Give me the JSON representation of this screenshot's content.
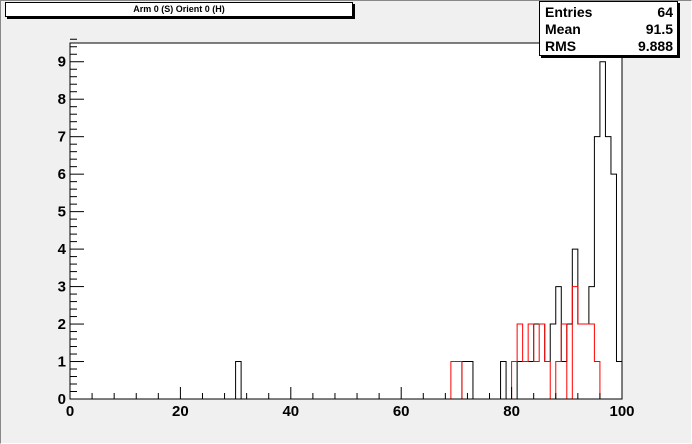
{
  "title": "Arm 0 (S) Orient 0 (H)",
  "stats": [
    {
      "label": "Entries",
      "value": "64"
    },
    {
      "label": "Mean",
      "value": "91.5"
    },
    {
      "label": "RMS",
      "value": "9.888"
    }
  ],
  "colors": {
    "background": "#f0f0f0",
    "plot_bg": "#ffffff",
    "series_black": "#000000",
    "series_red": "#ff0000"
  },
  "chart_data": {
    "type": "histogram",
    "title": "Arm 0 (S) Orient 0 (H)",
    "xlim": [
      0,
      100
    ],
    "ylim": [
      0,
      9.5
    ],
    "bin_width": 1,
    "x_ticks": [
      0,
      20,
      40,
      60,
      80,
      100
    ],
    "x_tick_labels": [
      "0",
      "20",
      "40",
      "60",
      "80",
      "100"
    ],
    "y_ticks": [
      0,
      1,
      2,
      3,
      4,
      5,
      6,
      7,
      8,
      9
    ],
    "y_tick_labels": [
      "0",
      "1",
      "2",
      "3",
      "4",
      "5",
      "6",
      "7",
      "8",
      "9"
    ],
    "grid": false,
    "series": [
      {
        "color": "#000000",
        "bins": [
          {
            "x": 30,
            "y": 1
          },
          {
            "x": 71,
            "y": 1
          },
          {
            "x": 72,
            "y": 1
          },
          {
            "x": 78,
            "y": 1
          },
          {
            "x": 81,
            "y": 1
          },
          {
            "x": 82,
            "y": 1
          },
          {
            "x": 83,
            "y": 1
          },
          {
            "x": 84,
            "y": 2
          },
          {
            "x": 85,
            "y": 2
          },
          {
            "x": 86,
            "y": 1
          },
          {
            "x": 87,
            "y": 2
          },
          {
            "x": 88,
            "y": 3
          },
          {
            "x": 89,
            "y": 1
          },
          {
            "x": 90,
            "y": 2
          },
          {
            "x": 91,
            "y": 4
          },
          {
            "x": 92,
            "y": 2
          },
          {
            "x": 93,
            "y": 2
          },
          {
            "x": 94,
            "y": 3
          },
          {
            "x": 95,
            "y": 7
          },
          {
            "x": 96,
            "y": 9
          },
          {
            "x": 97,
            "y": 7
          },
          {
            "x": 98,
            "y": 6
          },
          {
            "x": 99,
            "y": 1
          }
        ]
      },
      {
        "color": "#ff0000",
        "bins": [
          {
            "x": 69,
            "y": 1
          },
          {
            "x": 70,
            "y": 1
          },
          {
            "x": 80,
            "y": 1
          },
          {
            "x": 81,
            "y": 2
          },
          {
            "x": 82,
            "y": 1
          },
          {
            "x": 83,
            "y": 2
          },
          {
            "x": 84,
            "y": 1
          },
          {
            "x": 85,
            "y": 2
          },
          {
            "x": 86,
            "y": 1
          },
          {
            "x": 88,
            "y": 1
          },
          {
            "x": 89,
            "y": 2
          },
          {
            "x": 91,
            "y": 3
          },
          {
            "x": 92,
            "y": 2
          },
          {
            "x": 93,
            "y": 2
          },
          {
            "x": 94,
            "y": 2
          },
          {
            "x": 95,
            "y": 1
          }
        ]
      }
    ]
  }
}
